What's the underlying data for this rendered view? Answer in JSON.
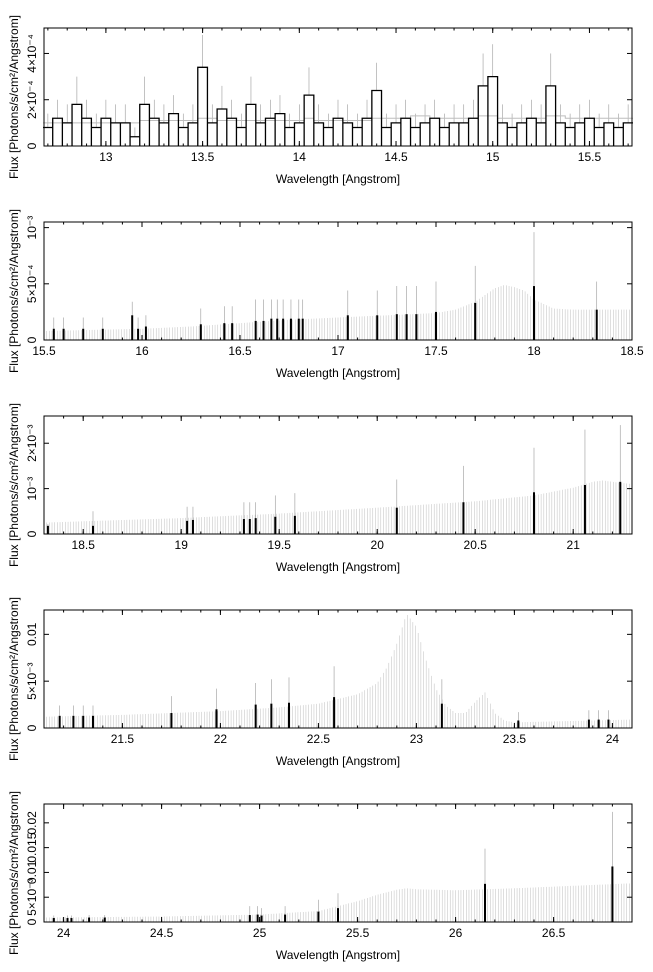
{
  "chart_data": [
    {
      "type": "line",
      "xlabel": "Wavelength [Angstrom]",
      "ylabel": "Flux [Photons/s/cm²/Angstrom]",
      "xlim": [
        12.68,
        15.72
      ],
      "ylim": [
        0,
        0.00051
      ],
      "x_ticks": [
        13,
        13.5,
        14,
        14.5,
        15,
        15.5
      ],
      "x_tick_labels": [
        "13",
        "13.5",
        "14",
        "14.5",
        "15",
        "15.5"
      ],
      "y_ticks": [
        0,
        0.0002,
        0.0004
      ],
      "y_tick_labels": [
        "0",
        "2×10⁻⁴",
        "4×10⁻⁴"
      ],
      "x": [
        12.7,
        12.75,
        12.8,
        12.85,
        12.9,
        12.95,
        13.0,
        13.05,
        13.1,
        13.15,
        13.2,
        13.25,
        13.3,
        13.35,
        13.4,
        13.45,
        13.5,
        13.55,
        13.6,
        13.65,
        13.7,
        13.75,
        13.8,
        13.85,
        13.9,
        13.95,
        14.0,
        14.05,
        14.1,
        14.15,
        14.2,
        14.25,
        14.3,
        14.35,
        14.4,
        14.45,
        14.5,
        14.55,
        14.6,
        14.65,
        14.7,
        14.75,
        14.8,
        14.85,
        14.9,
        14.95,
        15.0,
        15.05,
        15.1,
        15.15,
        15.2,
        15.25,
        15.3,
        15.35,
        15.4,
        15.45,
        15.5,
        15.55,
        15.6,
        15.65,
        15.7
      ],
      "values": [
        8e-05,
        0.00012,
        0.0001,
        0.00018,
        0.00012,
        8e-05,
        0.00012,
        0.0001,
        0.0001,
        4e-05,
        0.00018,
        0.00012,
        0.0001,
        0.00014,
        8e-05,
        0.0001,
        0.00034,
        0.0001,
        0.00016,
        0.00012,
        8e-05,
        0.00018,
        0.0001,
        0.00012,
        0.00014,
        8e-05,
        0.0001,
        0.00022,
        0.0001,
        8e-05,
        0.00012,
        0.0001,
        8e-05,
        0.00012,
        0.00024,
        8e-05,
        0.0001,
        0.00012,
        8e-05,
        0.0001,
        0.00012,
        8e-05,
        0.0001,
        0.0001,
        0.00012,
        0.00026,
        0.0003,
        0.0001,
        8e-05,
        0.0001,
        0.00012,
        0.0001,
        0.00026,
        0.0001,
        8e-05,
        0.0001,
        0.00012,
        8e-05,
        0.0001,
        8e-05,
        0.0001
      ],
      "model_values": [
        0.0001,
        0.0001,
        0.0001,
        0.0001,
        0.0001,
        0.0001,
        0.0001,
        0.0001,
        0.0001,
        0.0001,
        0.00011,
        0.00011,
        0.00011,
        0.00011,
        0.00011,
        0.00011,
        0.00012,
        0.00012,
        0.00011,
        0.00011,
        0.00011,
        0.00011,
        0.00011,
        0.00011,
        0.00011,
        0.00011,
        0.00011,
        0.00012,
        0.00011,
        0.00011,
        0.00011,
        0.00011,
        0.00011,
        0.00011,
        0.00012,
        0.00012,
        0.00012,
        0.00012,
        0.00013,
        0.00013,
        0.00012,
        0.00012,
        0.00012,
        0.00012,
        0.00012,
        0.00013,
        0.00013,
        0.00012,
        0.00012,
        0.00012,
        0.00012,
        0.00012,
        0.00013,
        0.00013,
        0.00012,
        0.00012,
        0.00012,
        0.00012,
        0.00012,
        0.00012,
        0.00012
      ],
      "error_upper": [
        0.00014,
        0.0002,
        0.00018,
        0.0003,
        0.0002,
        0.00014,
        0.0002,
        0.00018,
        0.00018,
        8e-05,
        0.0003,
        0.0002,
        0.00018,
        0.00022,
        0.00014,
        0.00018,
        0.00048,
        0.00018,
        0.00026,
        0.0002,
        0.00014,
        0.0003,
        0.00018,
        0.0002,
        0.00022,
        0.00014,
        0.00018,
        0.00034,
        0.00018,
        0.00014,
        0.0002,
        0.00018,
        0.00014,
        0.0002,
        0.00036,
        0.00014,
        0.00018,
        0.0002,
        0.00014,
        0.00018,
        0.0002,
        0.00014,
        0.00018,
        0.00018,
        0.0002,
        0.0004,
        0.00044,
        0.00018,
        0.00014,
        0.00018,
        0.0002,
        0.00018,
        0.0004,
        0.00018,
        0.00014,
        0.00018,
        0.0002,
        0.00014,
        0.00018,
        0.00014,
        0.00018
      ]
    },
    {
      "type": "bar",
      "xlabel": "Wavelength [Angstrom]",
      "ylabel": "Flux [Photons/s/cm²/Angstrom]",
      "xlim": [
        15.5,
        18.5
      ],
      "ylim": [
        0,
        0.00105
      ],
      "x_ticks": [
        15.5,
        16,
        16.5,
        17,
        17.5,
        18,
        18.5
      ],
      "x_tick_labels": [
        "15.5",
        "16",
        "16.5",
        "17",
        "17.5",
        "18",
        "18.5"
      ],
      "y_ticks": [
        0,
        0.0005,
        0.001
      ],
      "y_tick_labels": [
        "0",
        "5×10⁻⁴",
        "10⁻³"
      ],
      "x": [
        15.55,
        15.6,
        15.7,
        15.8,
        15.95,
        15.98,
        16.02,
        16.3,
        16.42,
        16.46,
        16.58,
        16.62,
        16.66,
        16.69,
        16.72,
        16.76,
        16.8,
        16.82,
        17.05,
        17.2,
        17.3,
        17.35,
        17.4,
        17.5,
        17.7,
        18.0,
        18.32
      ],
      "values": [
        0.0001,
        0.0001,
        0.0001,
        0.0001,
        0.00022,
        0.0001,
        0.00012,
        0.00014,
        0.00015,
        0.00015,
        0.00017,
        0.00017,
        0.00019,
        0.00019,
        0.00019,
        0.00019,
        0.00019,
        0.00019,
        0.00022,
        0.00022,
        0.00023,
        0.00023,
        0.00023,
        0.00025,
        0.00033,
        0.00048,
        0.00027
      ],
      "error_upper": [
        0.0002,
        0.0002,
        0.0002,
        0.0002,
        0.00034,
        0.0002,
        0.00022,
        0.00028,
        0.0003,
        0.0003,
        0.00036,
        0.00036,
        0.00036,
        0.00036,
        0.00036,
        0.00036,
        0.00036,
        0.00036,
        0.00044,
        0.00044,
        0.00048,
        0.00048,
        0.00048,
        0.00052,
        0.00066,
        0.00096,
        0.00052
      ],
      "model_x": [
        15.5,
        15.75,
        16.0,
        16.25,
        16.5,
        16.75,
        17.0,
        17.25,
        17.5,
        17.6,
        17.7,
        17.8,
        17.85,
        17.9,
        17.95,
        18.0,
        18.1,
        18.2,
        18.3,
        18.5
      ],
      "model_values": [
        8e-05,
        9e-05,
        0.0001,
        0.00012,
        0.00015,
        0.00018,
        0.0002,
        0.00022,
        0.00024,
        0.00027,
        0.00034,
        0.00046,
        0.00049,
        0.00047,
        0.00044,
        0.00036,
        0.00028,
        0.00027,
        0.00027,
        0.00027
      ]
    },
    {
      "type": "bar",
      "xlabel": "Wavelength [Angstrom]",
      "ylabel": "Flux [Photons/s/cm²/Angstrom]",
      "xlim": [
        18.3,
        21.3
      ],
      "ylim": [
        0,
        0.0026
      ],
      "x_ticks": [
        18.5,
        19,
        19.5,
        20,
        20.5,
        21
      ],
      "x_tick_labels": [
        "18.5",
        "19",
        "19.5",
        "20",
        "20.5",
        "21"
      ],
      "y_ticks": [
        0,
        0.001,
        0.002
      ],
      "y_tick_labels": [
        "0",
        "10⁻³",
        "2×10⁻³"
      ],
      "x": [
        18.32,
        18.55,
        19.03,
        19.06,
        19.32,
        19.35,
        19.38,
        19.48,
        19.58,
        20.1,
        20.44,
        20.8,
        21.06,
        21.24
      ],
      "values": [
        0.00018,
        0.00018,
        0.00029,
        0.00031,
        0.00033,
        0.00033,
        0.00035,
        0.00038,
        0.0004,
        0.00058,
        0.0007,
        0.00092,
        0.00108,
        0.00115
      ],
      "error_upper": [
        0.00022,
        0.0005,
        0.0006,
        0.0006,
        0.0007,
        0.0007,
        0.0007,
        0.00085,
        0.0009,
        0.0012,
        0.0015,
        0.0019,
        0.0023,
        0.0024
      ],
      "model_x": [
        18.3,
        18.5,
        19.0,
        19.5,
        20.0,
        20.5,
        20.8,
        21.0,
        21.1,
        21.15,
        21.2,
        21.3
      ],
      "model_values": [
        0.00025,
        0.00028,
        0.00035,
        0.00045,
        0.00058,
        0.00072,
        0.00085,
        0.00102,
        0.00115,
        0.00118,
        0.00115,
        0.0011
      ]
    },
    {
      "type": "bar",
      "xlabel": "Wavelength [Angstrom]",
      "ylabel": "Flux [Photons/s/cm²/Angstrom]",
      "xlim": [
        21.1,
        24.1
      ],
      "ylim": [
        0,
        0.0126
      ],
      "x_ticks": [
        21.5,
        22,
        22.5,
        23,
        23.5,
        24
      ],
      "x_tick_labels": [
        "21.5",
        "22",
        "22.5",
        "23",
        "23.5",
        "24"
      ],
      "y_ticks": [
        0,
        0.005,
        0.01
      ],
      "y_tick_labels": [
        "0",
        "5×10⁻³",
        "0.01"
      ],
      "x": [
        21.18,
        21.25,
        21.3,
        21.35,
        21.75,
        21.98,
        22.18,
        22.26,
        22.35,
        22.58,
        23.13,
        23.52,
        23.88,
        23.93,
        23.98
      ],
      "values": [
        0.0013,
        0.0013,
        0.0013,
        0.0013,
        0.0016,
        0.002,
        0.0025,
        0.0026,
        0.0027,
        0.0033,
        0.0026,
        0.0008,
        0.0009,
        0.0009,
        0.0009
      ],
      "error_upper": [
        0.0024,
        0.0024,
        0.0024,
        0.0024,
        0.0034,
        0.0042,
        0.0048,
        0.0052,
        0.0054,
        0.0066,
        0.0052,
        0.0017,
        0.0019,
        0.0019,
        0.0019
      ],
      "model_x": [
        21.1,
        21.5,
        22.0,
        22.3,
        22.5,
        22.7,
        22.8,
        22.85,
        22.9,
        22.95,
        23.0,
        23.05,
        23.1,
        23.15,
        23.2,
        23.25,
        23.3,
        23.35,
        23.4,
        23.45,
        23.5,
        24.1
      ],
      "model_values": [
        0.0012,
        0.0014,
        0.0018,
        0.0022,
        0.0026,
        0.0036,
        0.0048,
        0.0065,
        0.009,
        0.0122,
        0.0108,
        0.0072,
        0.0042,
        0.0024,
        0.0016,
        0.0016,
        0.0028,
        0.0038,
        0.0016,
        0.0008,
        0.0006,
        0.0009
      ]
    },
    {
      "type": "bar",
      "xlabel": "Wavelength [Angstrom]",
      "ylabel": "Flux [Photons/s/cm²/Angstrom]",
      "xlim": [
        23.9,
        26.9
      ],
      "ylim": [
        0,
        0.0238
      ],
      "x_ticks": [
        24,
        24.5,
        25,
        25.5,
        26,
        26.5
      ],
      "x_tick_labels": [
        "24",
        "24.5",
        "25",
        "25.5",
        "26",
        "26.5"
      ],
      "y_ticks": [
        0,
        0.005,
        0.01,
        0.015,
        0.02
      ],
      "y_tick_labels": [
        "0",
        "5×10⁻³",
        "0.01",
        "0.015",
        "0.02"
      ],
      "x": [
        23.95,
        24.02,
        24.04,
        24.13,
        24.21,
        24.95,
        24.99,
        25.01,
        25.13,
        25.3,
        25.4,
        26.15,
        26.8
      ],
      "values": [
        0.0008,
        0.0008,
        0.0008,
        0.0009,
        0.0009,
        0.0014,
        0.0015,
        0.0013,
        0.0015,
        0.0021,
        0.0028,
        0.0077,
        0.0112
      ],
      "error_upper": [
        0.0013,
        0.0013,
        0.0013,
        0.0014,
        0.0014,
        0.0032,
        0.0032,
        0.0028,
        0.0032,
        0.0045,
        0.0058,
        0.0148,
        0.0222
      ],
      "model_x": [
        23.9,
        24.5,
        25.0,
        25.3,
        25.5,
        25.6,
        25.7,
        25.75,
        25.8,
        26.0,
        26.3,
        26.6,
        26.9
      ],
      "model_values": [
        0.0009,
        0.0011,
        0.0015,
        0.0022,
        0.0042,
        0.0055,
        0.0065,
        0.0068,
        0.0066,
        0.0064,
        0.0068,
        0.0073,
        0.0078
      ]
    }
  ]
}
